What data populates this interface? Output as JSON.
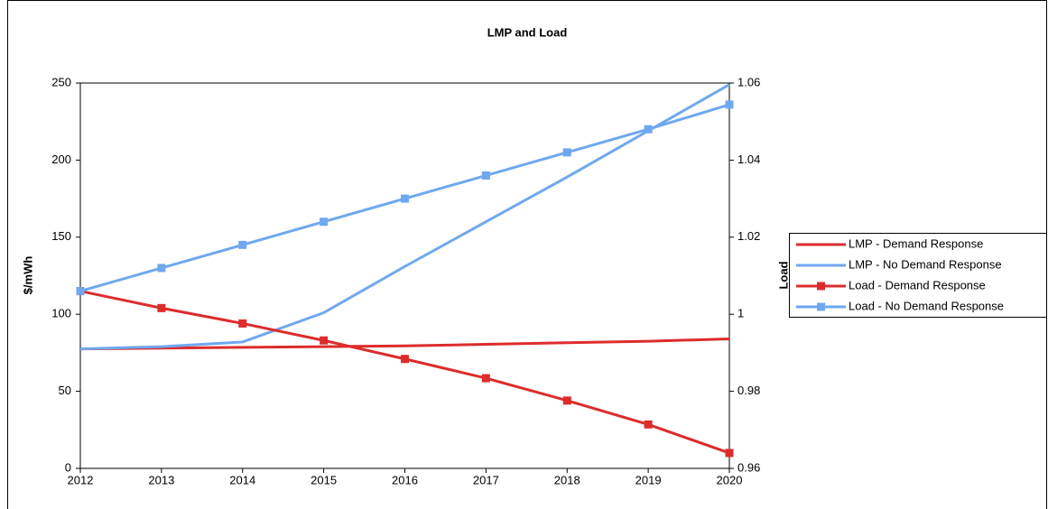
{
  "chart_data": {
    "type": "line",
    "title": "LMP and Load",
    "y_label": "$/mWh",
    "y2_label": "Load",
    "categories": [
      "2012",
      "2013",
      "2014",
      "2015",
      "2016",
      "2017",
      "2018",
      "2019",
      "2020"
    ],
    "ylim": [
      0,
      250
    ],
    "yticks": [
      0,
      50,
      100,
      150,
      200,
      250
    ],
    "y2lim": [
      0.96,
      1.06
    ],
    "y2ticks": [
      0.96,
      0.98,
      1,
      1.02,
      1.04,
      1.06
    ],
    "legend": "right",
    "series": [
      {
        "name": "LMP - Demand Response",
        "color": "#dd2c2c",
        "values": [
          77.5,
          78,
          78.5,
          79,
          79.5,
          80.5,
          81.5,
          82.5,
          84
        ]
      },
      {
        "name": "LMP - No Demand Response",
        "color": "#6fa8f0",
        "values": [
          77.5,
          79,
          82,
          101,
          131,
          160,
          189,
          219,
          249
        ]
      },
      {
        "name": "Load - Demand Response",
        "color": "#dd2c2c",
        "axis": "y2",
        "marker": "square",
        "values": [
          1.006,
          1.0016,
          0.9976,
          0.9932,
          0.9884,
          0.9834,
          0.9776,
          0.9714,
          0.964
        ]
      },
      {
        "name": "Load - No Demand Response",
        "color": "#6fa8f0",
        "axis": "y2",
        "marker": "square",
        "values": [
          1.006,
          1.012,
          1.018,
          1.024,
          1.03,
          1.036,
          1.042,
          1.048,
          1.0544
        ]
      }
    ]
  }
}
